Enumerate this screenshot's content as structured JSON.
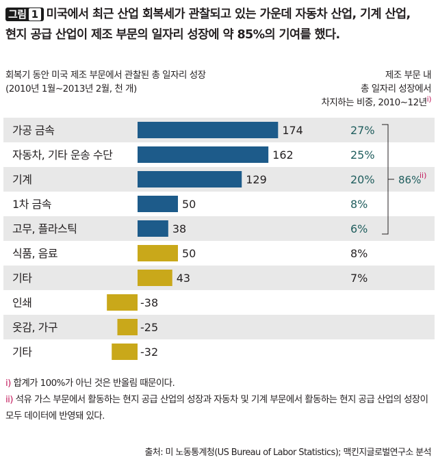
{
  "title": {
    "badge_label": "그림",
    "badge_num": "1",
    "line1": "미국에서 최근 산업 회복세가 관찰되고 있는 가운데 자동차 산업, 기계 산업,",
    "line2": "현지 공급 산업이 제조 부문의 일자리 성장에 약 85%의 기여를 했다."
  },
  "subtitle_left": {
    "line1": "회복기 동안 미국 제조 부문에서 관찰된 총 일자리 성장",
    "line2": "(2010년 1월∼2013년 2월, 천 개)"
  },
  "subtitle_right": {
    "line1": "제조 부문 내",
    "line2": "총 일자리 성장에서",
    "line3": "차지하는 비중, 2010∼12년",
    "mark": "i)"
  },
  "chart_data": {
    "type": "bar",
    "orientation": "horizontal",
    "categories": [
      "가공 금속",
      "자동차, 기타 운송 수단",
      "기계",
      "1차 금속",
      "고무, 플라스틱",
      "식품, 음료",
      "기타",
      "인쇄",
      "옷감, 가구",
      "기타"
    ],
    "values": [
      174,
      162,
      129,
      50,
      38,
      50,
      43,
      -38,
      -25,
      -32
    ],
    "value_labels": [
      "174",
      "162",
      "129",
      "50",
      "38",
      "50",
      "43",
      "-38",
      "-25",
      "-32"
    ],
    "shares": [
      "27%",
      "25%",
      "20%",
      "8%",
      "6%",
      "8%",
      "7%",
      "",
      "",
      ""
    ],
    "group_total": "86%",
    "group_total_mark": "ii)",
    "colors": {
      "highlight_bar": "#1d5b8a",
      "other_bar": "#c9a81a",
      "row_shade": "#e8e8e8",
      "highlight_share": "#1f5d5d",
      "other_share": "#231f20"
    }
  },
  "notes": [
    {
      "mark": "i)",
      "text": "합계가 100%가 아닌 것은 반올림 때문이다."
    },
    {
      "mark": "ii)",
      "text": "석유 가스 부문에서 활동하는 현지 공급 산업의 성장과 자동차 및 기계 부문에서 활동하는 현지 공급 산업의 성장이 모두 데이터에 반영돼 있다."
    }
  ],
  "source": "출처: 미 노동통계청(US Bureau of Labor Statistics); 맥킨지글로벌연구소 분석"
}
